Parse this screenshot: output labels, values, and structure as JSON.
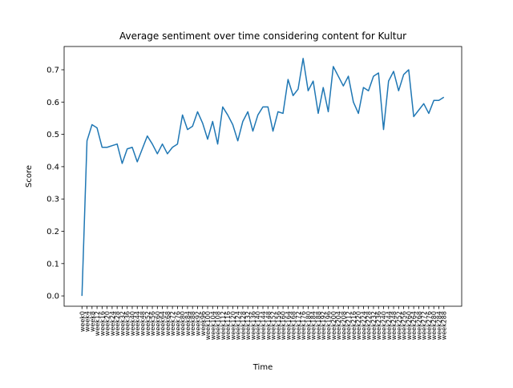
{
  "chart_data": {
    "type": "line",
    "title": "Average sentiment over time considering content for Kultur",
    "xlabel": "Time",
    "ylabel": "Score",
    "categories": [
      "week0",
      "week4",
      "week8",
      "week12",
      "week16",
      "week20",
      "week24",
      "week28",
      "week32",
      "week36",
      "week40",
      "week44",
      "week48",
      "week52",
      "week56",
      "week60",
      "week64",
      "week68",
      "week72",
      "week76",
      "week80",
      "week84",
      "week88",
      "week92",
      "week96",
      "week100",
      "week104",
      "week108",
      "week112",
      "week116",
      "week120",
      "week124",
      "week128",
      "week132",
      "week136",
      "week140",
      "week144",
      "week148",
      "week152",
      "week156",
      "week160",
      "week164",
      "week168",
      "week172",
      "week176",
      "week180",
      "week184",
      "week188",
      "week192",
      "week196",
      "week200",
      "week204",
      "week208",
      "week212",
      "week216",
      "week220",
      "week224",
      "week228",
      "week232",
      "week236",
      "week240",
      "week244",
      "week248",
      "week252",
      "week256",
      "week260",
      "week264",
      "week268",
      "week272",
      "week276",
      "week280",
      "week284",
      "week288"
    ],
    "series": [
      {
        "name": "Kultur",
        "color": "#1f77b4",
        "values": [
          0.0,
          0.48,
          0.53,
          0.52,
          0.46,
          0.46,
          0.465,
          0.47,
          0.41,
          0.455,
          0.46,
          0.415,
          0.455,
          0.495,
          0.47,
          0.44,
          0.47,
          0.44,
          0.46,
          0.47,
          0.56,
          0.515,
          0.525,
          0.57,
          0.535,
          0.485,
          0.54,
          0.47,
          0.585,
          0.56,
          0.53,
          0.48,
          0.54,
          0.57,
          0.51,
          0.56,
          0.585,
          0.585,
          0.51,
          0.57,
          0.565,
          0.67,
          0.62,
          0.64,
          0.735,
          0.635,
          0.665,
          0.565,
          0.645,
          0.57,
          0.71,
          0.68,
          0.65,
          0.68,
          0.6,
          0.565,
          0.645,
          0.635,
          0.68,
          0.69,
          0.515,
          0.665,
          0.695,
          0.635,
          0.685,
          0.7,
          0.555,
          0.575,
          0.595,
          0.565,
          0.605,
          0.605,
          0.615
        ]
      }
    ],
    "ylim": [
      -0.032,
      0.772
    ],
    "yticks": [
      {
        "value": 0,
        "label": "0.0"
      },
      0.1,
      0.2,
      0.3,
      0.4,
      0.5,
      0.6,
      0.7
    ]
  }
}
